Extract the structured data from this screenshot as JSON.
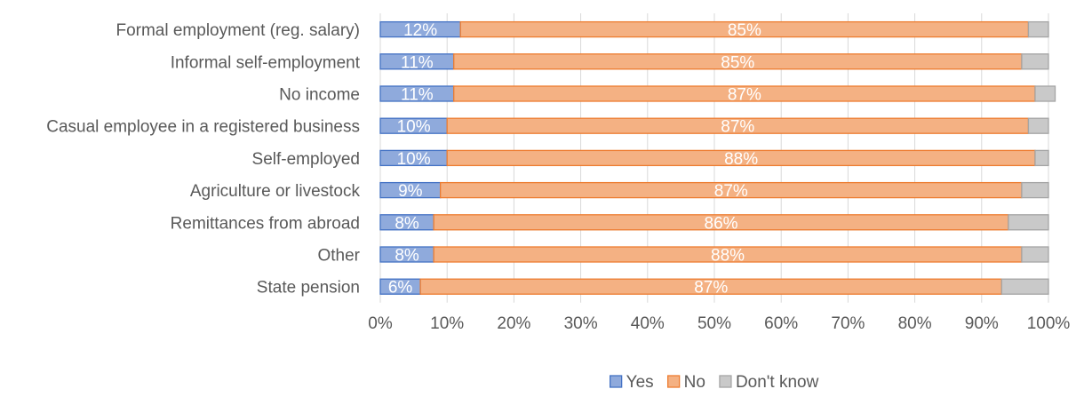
{
  "chart_data": {
    "type": "bar",
    "orientation": "horizontal",
    "stacked": "100%",
    "categories": [
      "Formal employment (reg. salary)",
      "Informal self-employment",
      "No income",
      "Casual employee in a registered business",
      "Self-employed",
      "Agriculture or livestock",
      "Remittances from abroad",
      "Other",
      "State pension"
    ],
    "series": [
      {
        "name": "Yes",
        "color": "#8faadc",
        "stroke": "#4472c4",
        "values": [
          12,
          11,
          11,
          10,
          10,
          9,
          8,
          8,
          6
        ],
        "labels": [
          "12%",
          "11%",
          "11%",
          "10%",
          "10%",
          "9%",
          "8%",
          "8%",
          "6%"
        ]
      },
      {
        "name": "No",
        "color": "#f4b183",
        "stroke": "#ed7d31",
        "values": [
          85,
          85,
          87,
          87,
          88,
          87,
          86,
          88,
          87
        ],
        "labels": [
          "85%",
          "85%",
          "87%",
          "87%",
          "88%",
          "87%",
          "86%",
          "88%",
          "87%"
        ]
      },
      {
        "name": "Don't know",
        "color": "#c9c9c9",
        "stroke": "#a5a5a5",
        "values": [
          3,
          4,
          3,
          3,
          2,
          4,
          6,
          4,
          7
        ],
        "labels": []
      }
    ],
    "xlim": [
      0,
      100
    ],
    "xticks": [
      "0%",
      "10%",
      "20%",
      "30%",
      "40%",
      "50%",
      "60%",
      "70%",
      "80%",
      "90%",
      "100%"
    ],
    "grid": true,
    "legend_position": "bottom"
  }
}
